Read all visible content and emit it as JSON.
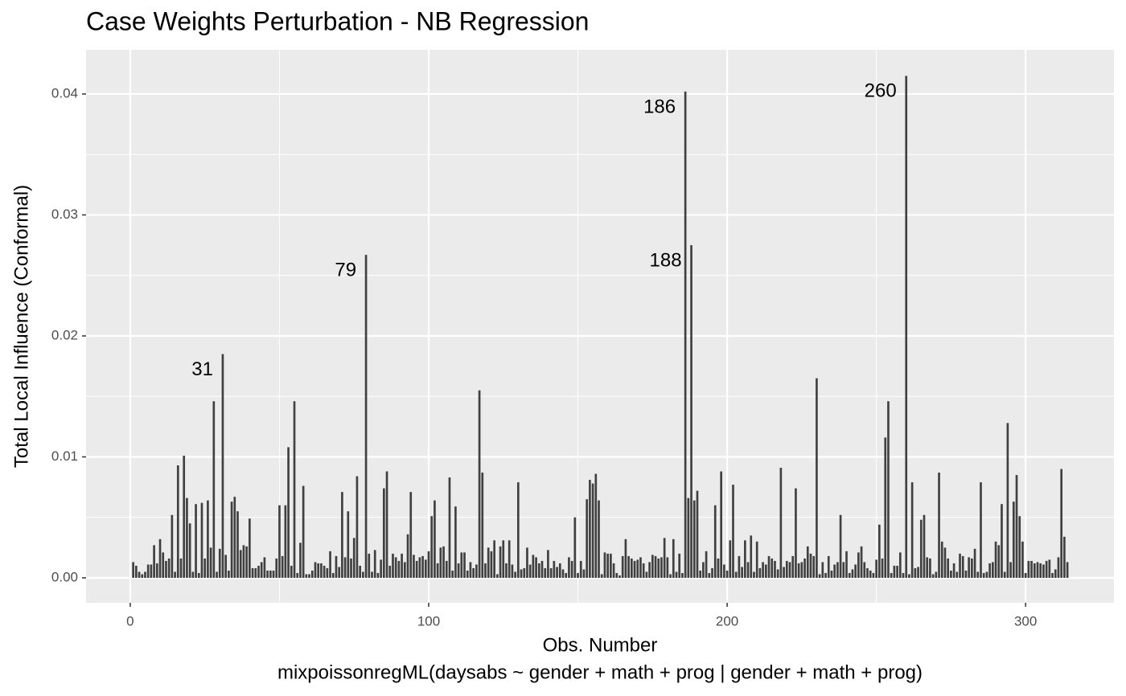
{
  "chart_data": {
    "type": "bar",
    "title": "Case Weights Perturbation - NB Regression",
    "x_label": "Obs. Number",
    "caption": "mixpoissonregML(daysabs ~ gender + math + prog | gender + math + prog)",
    "y_label": "Total Local Influence (Conformal)",
    "color": "#404040",
    "grid": true,
    "xlim": [
      -14.8,
      329.6
    ],
    "ylim": [
      -0.00206,
      0.04365
    ],
    "xticks": [
      0,
      100,
      200,
      300
    ],
    "minor_xticks": [
      50,
      150,
      250
    ],
    "yticks": [
      {
        "value": 0,
        "label": "0.00"
      },
      {
        "value": 0.01,
        "label": "0.01"
      },
      {
        "value": 0.02,
        "label": "0.02"
      },
      {
        "value": 0.03,
        "label": "0.03"
      },
      {
        "value": 0.04,
        "label": "0.04"
      }
    ],
    "minor_yticks": [
      0.005,
      0.015,
      0.025,
      0.035
    ],
    "annotations": [
      {
        "text": "31",
        "x": 31
      },
      {
        "text": "79",
        "x": 79
      },
      {
        "text": "186",
        "x": 186
      },
      {
        "text": "188",
        "x": 188
      },
      {
        "text": "260",
        "x": 260
      }
    ],
    "x": [
      1,
      2,
      3,
      4,
      5,
      6,
      7,
      8,
      9,
      10,
      11,
      12,
      13,
      14,
      15,
      16,
      17,
      18,
      19,
      20,
      21,
      22,
      23,
      24,
      25,
      26,
      27,
      28,
      29,
      30,
      31,
      32,
      33,
      34,
      35,
      36,
      37,
      38,
      39,
      40,
      41,
      42,
      43,
      44,
      45,
      46,
      47,
      48,
      49,
      50,
      51,
      52,
      53,
      54,
      55,
      56,
      57,
      58,
      59,
      60,
      61,
      62,
      63,
      64,
      65,
      66,
      67,
      68,
      69,
      70,
      71,
      72,
      73,
      74,
      75,
      76,
      77,
      78,
      79,
      80,
      81,
      82,
      83,
      84,
      85,
      86,
      87,
      88,
      89,
      90,
      91,
      92,
      93,
      94,
      95,
      96,
      97,
      98,
      99,
      100,
      101,
      102,
      103,
      104,
      105,
      106,
      107,
      108,
      109,
      110,
      111,
      112,
      113,
      114,
      115,
      116,
      117,
      118,
      119,
      120,
      121,
      122,
      123,
      124,
      125,
      126,
      127,
      128,
      129,
      130,
      131,
      132,
      133,
      134,
      135,
      136,
      137,
      138,
      139,
      140,
      141,
      142,
      143,
      144,
      145,
      146,
      147,
      148,
      149,
      150,
      151,
      152,
      153,
      154,
      155,
      156,
      157,
      158,
      159,
      160,
      161,
      162,
      163,
      164,
      165,
      166,
      167,
      168,
      169,
      170,
      171,
      172,
      173,
      174,
      175,
      176,
      177,
      178,
      179,
      180,
      181,
      182,
      183,
      184,
      185,
      186,
      187,
      188,
      189,
      190,
      191,
      192,
      193,
      194,
      195,
      196,
      197,
      198,
      199,
      200,
      201,
      202,
      203,
      204,
      205,
      206,
      207,
      208,
      209,
      210,
      211,
      212,
      213,
      214,
      215,
      216,
      217,
      218,
      219,
      220,
      221,
      222,
      223,
      224,
      225,
      226,
      227,
      228,
      229,
      230,
      231,
      232,
      233,
      234,
      235,
      236,
      237,
      238,
      239,
      240,
      241,
      242,
      243,
      244,
      245,
      246,
      247,
      248,
      249,
      250,
      251,
      252,
      253,
      254,
      255,
      256,
      257,
      258,
      259,
      260,
      261,
      262,
      263,
      264,
      265,
      266,
      267,
      268,
      269,
      270,
      271,
      272,
      273,
      274,
      275,
      276,
      277,
      278,
      279,
      280,
      281,
      282,
      283,
      284,
      285,
      286,
      287,
      288,
      289,
      290,
      291,
      292,
      293,
      294,
      295,
      296,
      297,
      298,
      299,
      300,
      301,
      302,
      303,
      304,
      305,
      306,
      307,
      308,
      309,
      310,
      311,
      312,
      313,
      314
    ],
    "values": [
      0.0013,
      0.001,
      0.0005,
      0.0003,
      0.0005,
      0.0011,
      0.0011,
      0.0027,
      0.0012,
      0.0032,
      0.0021,
      0.0014,
      0.0016,
      0.0052,
      0.0005,
      0.0093,
      0.0016,
      0.0101,
      0.0066,
      0.0045,
      0.0005,
      0.0061,
      0.0004,
      0.0062,
      0.0016,
      0.0064,
      0.0025,
      0.0146,
      0.0005,
      0.0024,
      0.0185,
      0.0019,
      0.0006,
      0.0063,
      0.0067,
      0.0055,
      0.0023,
      0.0027,
      0.0026,
      0.0049,
      0.0008,
      0.0008,
      0.001,
      0.0013,
      0.0017,
      0.0006,
      0.0006,
      0.0006,
      0.0016,
      0.006,
      0.0018,
      0.006,
      0.0108,
      0.001,
      0.0146,
      0.0004,
      0.0029,
      0.0076,
      0.0003,
      0.0003,
      0.0006,
      0.0013,
      0.0012,
      0.0012,
      0.001,
      0.0008,
      0.0022,
      0.0004,
      0.0018,
      0.0009,
      0.0071,
      0.0017,
      0.0055,
      0.0016,
      0.0033,
      0.0084,
      0.001,
      0.0005,
      0.0267,
      0.002,
      0.0005,
      0.0023,
      0.0004,
      0.0015,
      0.0074,
      0.0088,
      0.001,
      0.002,
      0.0017,
      0.0014,
      0.002,
      0.0013,
      0.0036,
      0.0071,
      0.0019,
      0.0014,
      0.0017,
      0.0018,
      0.0015,
      0.0022,
      0.0051,
      0.0064,
      0.0012,
      0.0025,
      0.0026,
      0.0014,
      0.0083,
      0.0006,
      0.0059,
      0.0012,
      0.0021,
      0.0021,
      0.0006,
      0.0013,
      0.0008,
      0.0011,
      0.0155,
      0.0087,
      0.0012,
      0.0025,
      0.0022,
      0.0031,
      0.0003,
      0.0026,
      0.0031,
      0.0012,
      0.0031,
      0.0011,
      0.0005,
      0.0079,
      0.0007,
      0.0008,
      0.0025,
      0.0011,
      0.0019,
      0.0017,
      0.0012,
      0.0014,
      0.0008,
      0.0023,
      0.0008,
      0.0014,
      0.0009,
      0.0012,
      0.0007,
      0.0004,
      0.0017,
      0.0014,
      0.005,
      0.0004,
      0.0014,
      0.0007,
      0.0065,
      0.0081,
      0.0078,
      0.0086,
      0.0064,
      0.0003,
      0.0021,
      0.002,
      0.002,
      0.0012,
      0.0004,
      0.0002,
      0.0018,
      0.0032,
      0.0018,
      0.0016,
      0.0014,
      0.0015,
      0.0017,
      0.0012,
      0.0005,
      0.0013,
      0.0019,
      0.0018,
      0.0016,
      0.0017,
      0.0033,
      0.0017,
      0.0003,
      0.0032,
      0.0005,
      0.002,
      0.0004,
      0.0402,
      0.0066,
      0.0275,
      0.0064,
      0.0072,
      0.0006,
      0.0013,
      0.0022,
      0.0004,
      0.0008,
      0.006,
      0.0016,
      0.0088,
      0.0011,
      0.0006,
      0.0031,
      0.0077,
      0.0005,
      0.0018,
      0.0009,
      0.0031,
      0.0013,
      0.0035,
      0.0005,
      0.003,
      0.0008,
      0.0013,
      0.0011,
      0.0018,
      0.0016,
      0.0014,
      0.0007,
      0.0091,
      0.0009,
      0.0014,
      0.0013,
      0.0018,
      0.0074,
      0.0012,
      0.0013,
      0.0016,
      0.0026,
      0.002,
      0.0018,
      0.0165,
      0.0003,
      0.0013,
      0.0004,
      0.0018,
      0.0006,
      0.0011,
      0.0013,
      0.0052,
      0.0013,
      0.0022,
      0.0004,
      0.0007,
      0.0011,
      0.0021,
      0.0026,
      0.0013,
      0.0008,
      0.0006,
      0.0004,
      0.0015,
      0.0044,
      0.0016,
      0.0116,
      0.0146,
      0.0004,
      0.001,
      0.001,
      0.0021,
      0.0004,
      0.0415,
      0.0003,
      0.0079,
      0.0008,
      0.0009,
      0.0048,
      0.0052,
      0.0017,
      0.0016,
      0.0003,
      0.0005,
      0.0087,
      0.003,
      0.0025,
      0.0016,
      0.0006,
      0.0012,
      0.0005,
      0.002,
      0.0018,
      0.0006,
      0.0017,
      0.0016,
      0.0024,
      0.0005,
      0.0079,
      0.0004,
      0.0005,
      0.0012,
      0.0013,
      0.003,
      0.0027,
      0.0061,
      0.0005,
      0.0128,
      0.0013,
      0.0063,
      0.0085,
      0.0051,
      0.003,
      0.0004,
      0.0014,
      0.0014,
      0.0012,
      0.0013,
      0.0012,
      0.0011,
      0.0014,
      0.0015,
      0.0004,
      0.0007,
      0.0017,
      0.009,
      0.0034,
      0.0013
    ]
  }
}
